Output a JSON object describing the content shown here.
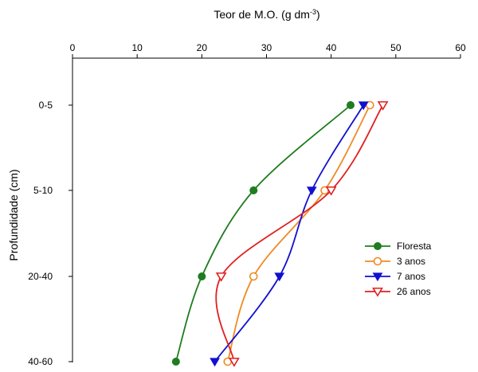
{
  "chart_data": {
    "type": "line",
    "orientation": "depth-profile",
    "xlabel": "Teor de M.O. (g dm",
    "xlabel_superscript": "-3",
    "xlabel_suffix": ")",
    "ylabel": "Profundidade (cm)",
    "xlim": [
      0,
      60
    ],
    "x_ticks": [
      "0",
      "10",
      "20",
      "30",
      "40",
      "50",
      "60"
    ],
    "x_axis_position": "top",
    "categories": [
      "0-5",
      "5-10",
      "20-40",
      "40-60"
    ],
    "grid": false,
    "legend_position": "right",
    "series": [
      {
        "name": "Floresta",
        "color": "#1e7d1e",
        "marker": "circle-filled",
        "values": [
          43,
          28,
          20,
          16
        ]
      },
      {
        "name": "3 anos",
        "color": "#f08a24",
        "marker": "circle-open",
        "values": [
          46,
          39,
          28,
          24
        ]
      },
      {
        "name": "7 anos",
        "color": "#1010d0",
        "marker": "triangle-down-filled",
        "values": [
          45,
          37,
          32,
          22
        ]
      },
      {
        "name": "26 anos",
        "color": "#e02020",
        "marker": "triangle-down-open",
        "values": [
          48,
          40,
          23,
          25
        ]
      }
    ]
  }
}
